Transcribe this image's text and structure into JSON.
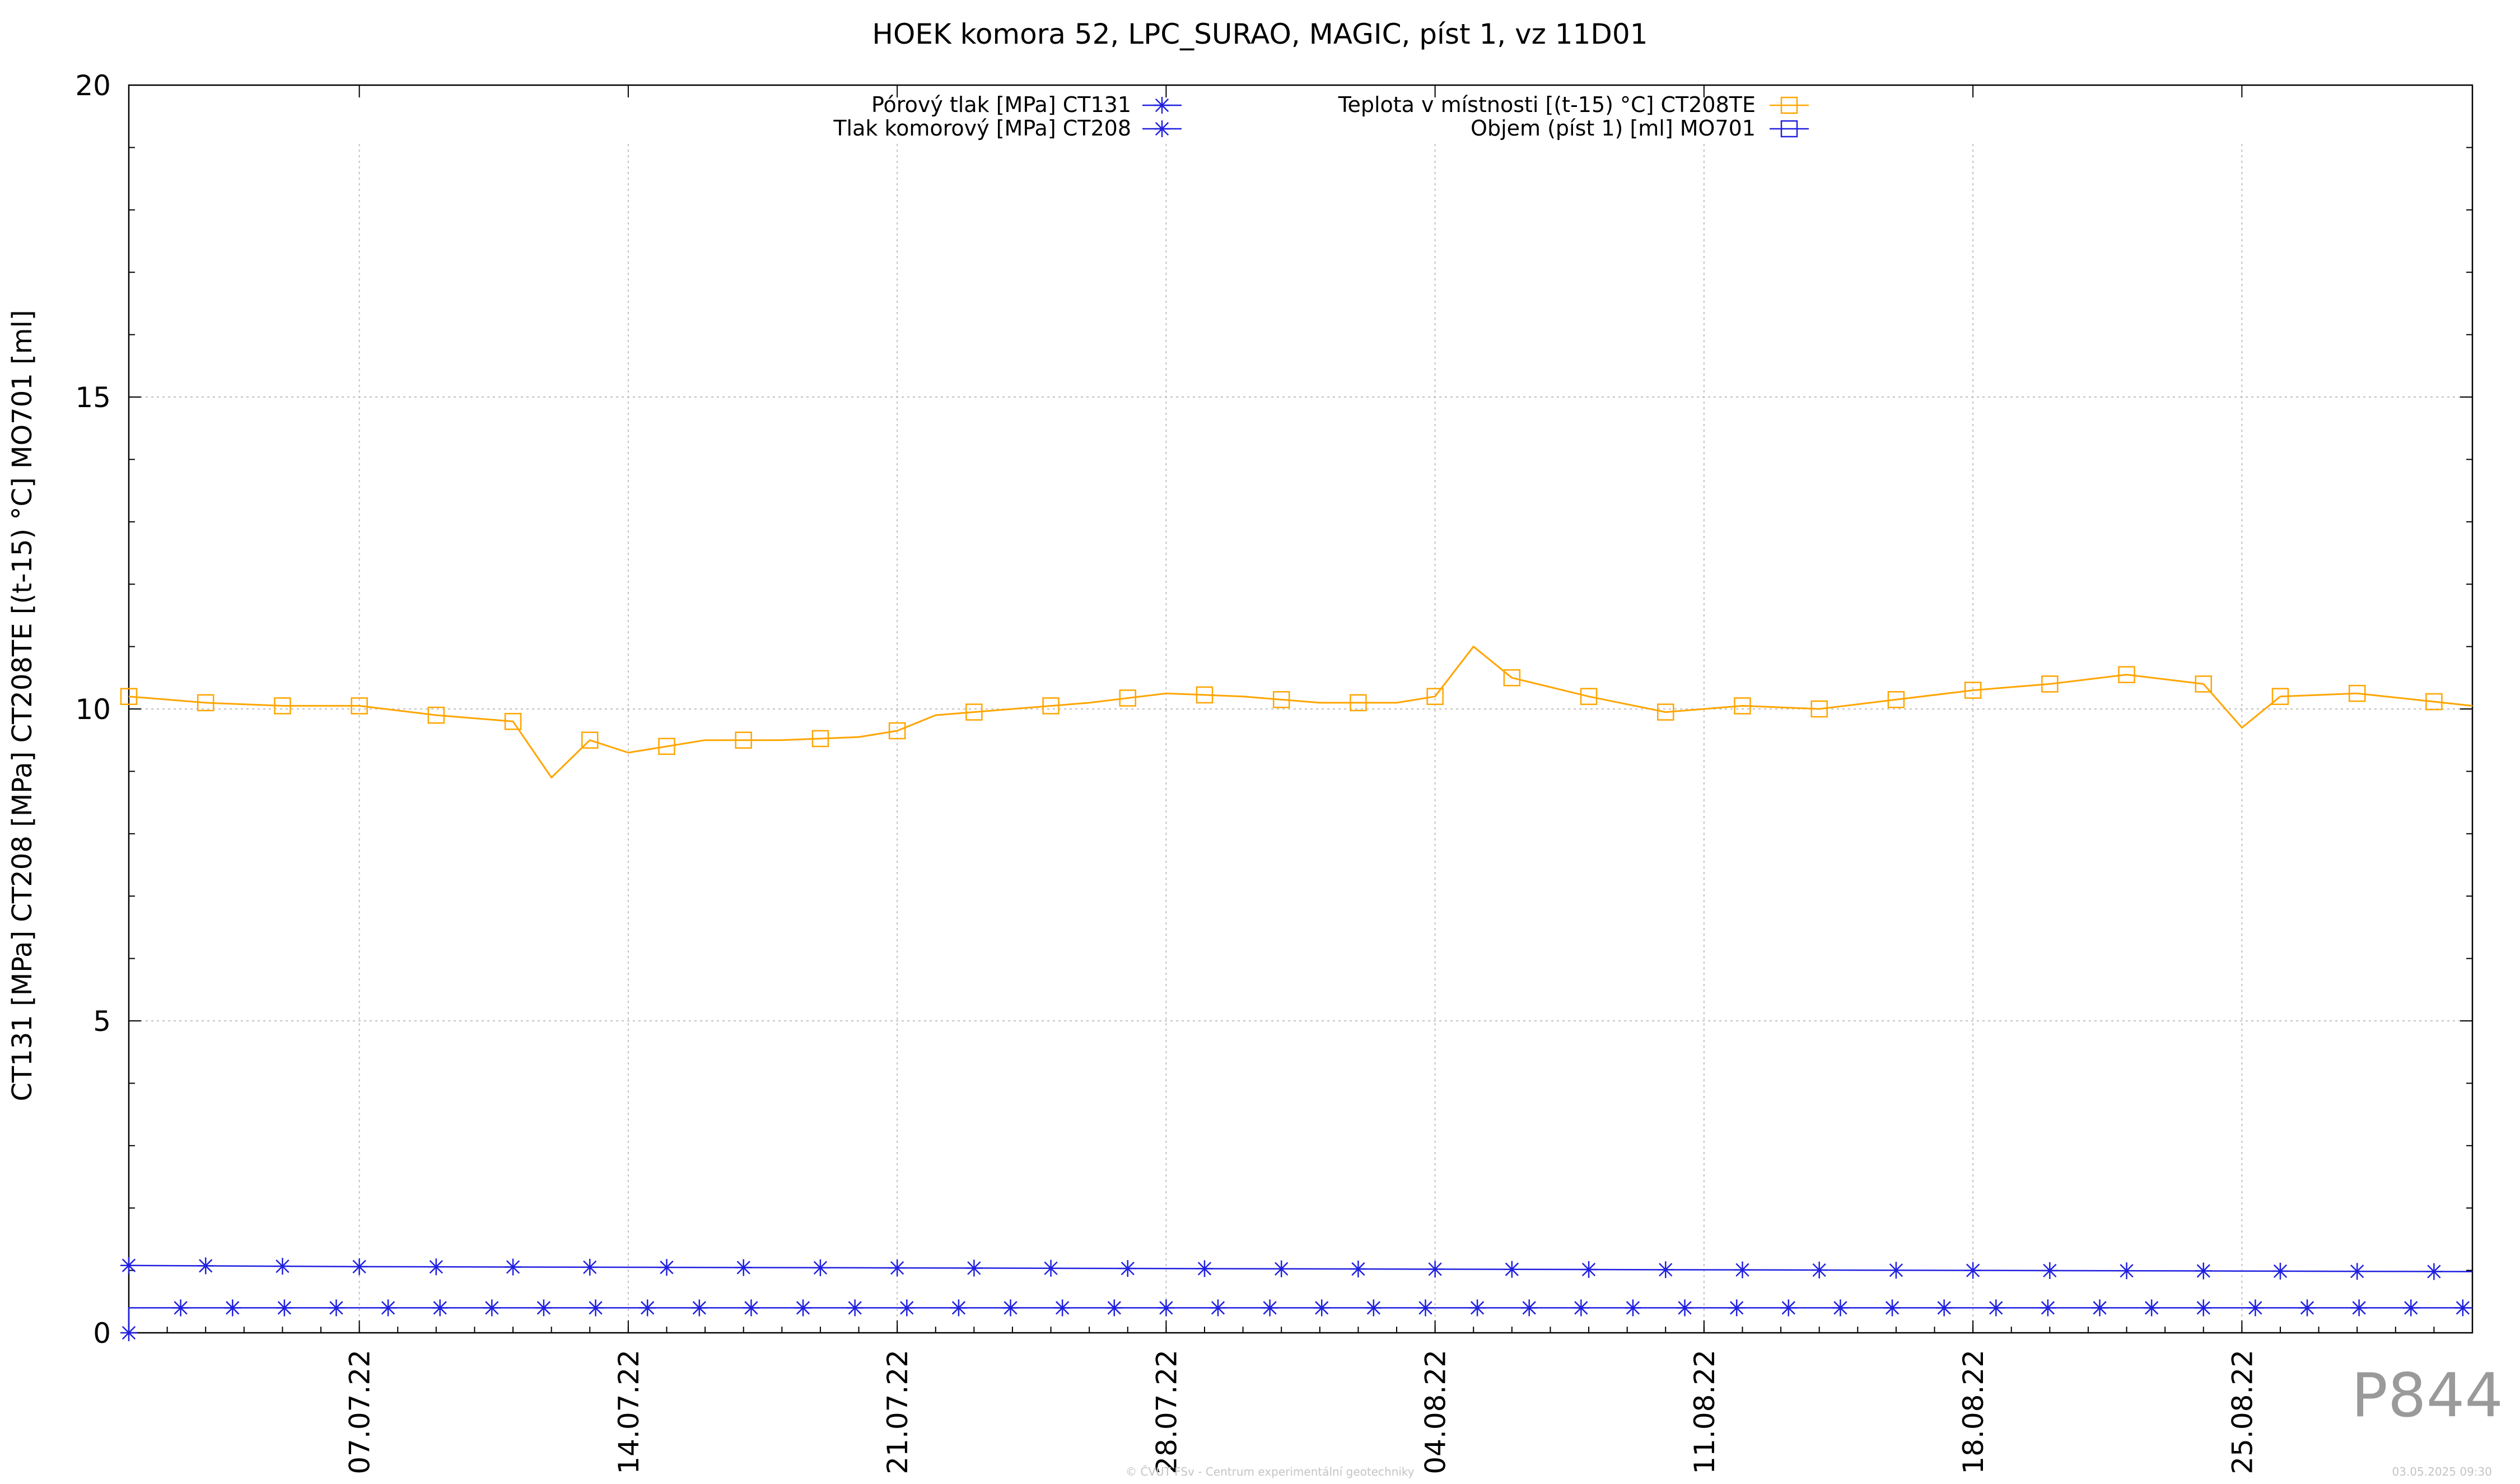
{
  "title": "HOEK komora 52, LPC_SURAO, MAGIC, píst 1, vz 11D01",
  "watermark": "P844",
  "footer_credit": "© ČVUT FSv - Centrum experimentální geotechniky",
  "footer_timestamp": "03.05.2025 09:30",
  "colors": {
    "blue": "#2020e0",
    "orange": "#ffa500",
    "grid": "#c0c0c0"
  },
  "chart_data": {
    "type": "line",
    "title": "HOEK komora 52, LPC_SURAO, MAGIC, píst 1, vz 11D01",
    "xlabel": "",
    "ylabel": "CT131 [MPa] CT208 [MPa] CT208TE [(t-15) °C] MO701 [ml]",
    "xlim": [
      "2022-07-01",
      "2022-08-31"
    ],
    "ylim": [
      0,
      20
    ],
    "yticks": [
      0,
      5,
      10,
      15,
      20
    ],
    "xticks": [
      "07.07.22",
      "14.07.22",
      "21.07.22",
      "28.07.22",
      "04.08.22",
      "11.08.22",
      "18.08.22",
      "25.08.22"
    ],
    "grid": true,
    "legend_position": "top",
    "series": [
      {
        "name": "Pórový tlak [MPa] CT131",
        "color": "#2020e0",
        "marker": "asterisk",
        "x": [
          "2022-07-01",
          "2022-07-07",
          "2022-07-14",
          "2022-07-21",
          "2022-07-28",
          "2022-08-04",
          "2022-08-11",
          "2022-08-18",
          "2022-08-25",
          "2022-08-31"
        ],
        "y": [
          1.08,
          1.06,
          1.05,
          1.04,
          1.03,
          1.02,
          1.01,
          1.0,
          0.99,
          0.98
        ]
      },
      {
        "name": "Tlak komorový [MPa] CT208",
        "color": "#2020e0",
        "marker": "asterisk",
        "x": [
          "2022-07-01",
          "2022-07-01",
          "2022-07-01",
          "2022-07-02",
          "2022-08-31"
        ],
        "y": [
          0,
          0,
          0.4,
          0.4,
          0.4
        ]
      },
      {
        "name": "Teplota v místnosti [(t-15) °C] CT208TE",
        "color": "#ffa500",
        "marker": "square",
        "x": [
          "2022-07-01",
          "2022-07-03",
          "2022-07-05",
          "2022-07-07",
          "2022-07-09",
          "2022-07-11",
          "2022-07-12",
          "2022-07-13",
          "2022-07-14",
          "2022-07-16",
          "2022-07-18",
          "2022-07-20",
          "2022-07-21",
          "2022-07-22",
          "2022-07-24",
          "2022-07-26",
          "2022-07-28",
          "2022-07-30",
          "2022-08-01",
          "2022-08-03",
          "2022-08-04",
          "2022-08-05",
          "2022-08-06",
          "2022-08-08",
          "2022-08-10",
          "2022-08-12",
          "2022-08-14",
          "2022-08-16",
          "2022-08-18",
          "2022-08-20",
          "2022-08-22",
          "2022-08-24",
          "2022-08-25",
          "2022-08-26",
          "2022-08-28",
          "2022-08-31"
        ],
        "y": [
          10.2,
          10.1,
          10.05,
          10.05,
          9.9,
          9.8,
          8.9,
          9.5,
          9.3,
          9.5,
          9.5,
          9.55,
          9.65,
          9.9,
          10.0,
          10.1,
          10.25,
          10.2,
          10.1,
          10.1,
          10.2,
          11.0,
          10.5,
          10.2,
          9.95,
          10.05,
          10.0,
          10.15,
          10.3,
          10.4,
          10.55,
          10.4,
          9.7,
          10.2,
          10.25,
          10.05
        ]
      },
      {
        "name": "Objem (píst 1) [ml] MO701",
        "color": "#2020e0",
        "marker": "open-square",
        "x": [],
        "y": []
      }
    ]
  }
}
